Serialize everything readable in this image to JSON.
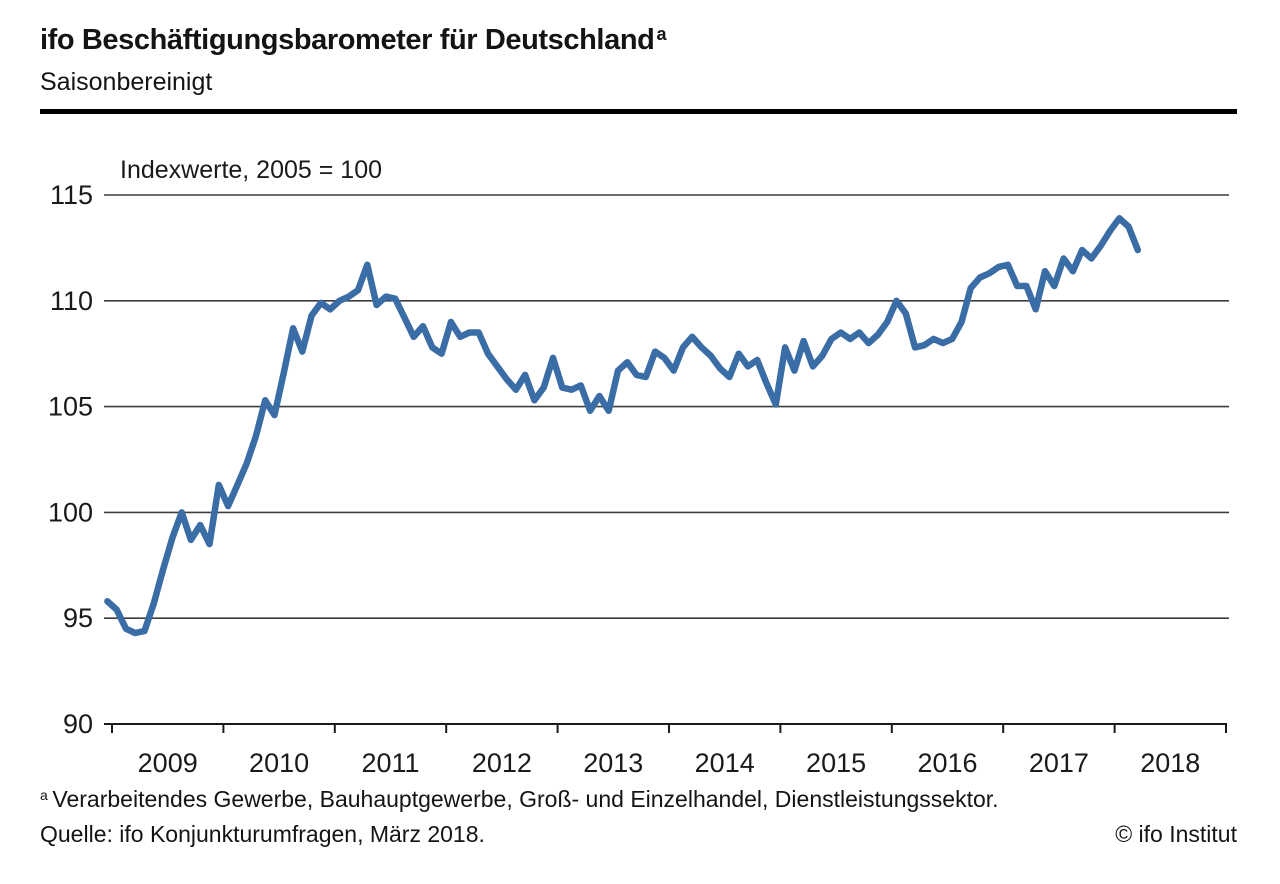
{
  "header": {
    "title": "ifo Beschäftigungsbarometer für Deutschland",
    "title_superscript": "a",
    "subtitle": "Saisonbereinigt"
  },
  "chart_data": {
    "type": "line",
    "title": "ifo Beschäftigungsbarometer für Deutschland (a), saisonbereinigt",
    "axis_label": "Indexwerte, 2005 = 100",
    "frequency": "monthly",
    "x_start": "Dez 2008",
    "x_end": "Mär 2018",
    "x_year_labels": [
      "2009",
      "2010",
      "2011",
      "2012",
      "2013",
      "2014",
      "2015",
      "2016",
      "2017",
      "2018"
    ],
    "y_tick_labels": [
      115,
      110,
      105,
      100,
      95,
      90
    ],
    "ylim": [
      90,
      116.5
    ],
    "grid": "horizontal",
    "legend": "none",
    "line_color": "#3a6ca6",
    "axis_color": "#1a1a1a",
    "grid_color": "#3d3d3d",
    "series": [
      {
        "name": "ifo Beschäftigungsbarometer",
        "values": [
          95.8,
          95.4,
          94.5,
          94.3,
          94.4,
          95.7,
          97.3,
          98.8,
          100.0,
          98.7,
          99.4,
          98.5,
          101.3,
          100.3,
          101.3,
          102.3,
          103.6,
          105.3,
          104.6,
          106.6,
          108.7,
          107.6,
          109.3,
          109.9,
          109.6,
          110.0,
          110.2,
          110.5,
          111.7,
          109.8,
          110.2,
          110.1,
          109.2,
          108.3,
          108.8,
          107.8,
          107.5,
          109.0,
          108.3,
          108.5,
          108.5,
          107.5,
          106.9,
          106.3,
          105.8,
          106.5,
          105.3,
          105.9,
          107.3,
          105.9,
          105.8,
          106.0,
          104.8,
          105.5,
          104.8,
          106.7,
          107.1,
          106.5,
          106.4,
          107.6,
          107.3,
          106.7,
          107.8,
          108.3,
          107.8,
          107.4,
          106.8,
          106.4,
          107.5,
          106.9,
          107.2,
          106.1,
          105.1,
          107.8,
          106.7,
          108.1,
          106.9,
          107.4,
          108.2,
          108.5,
          108.2,
          108.5,
          108.0,
          108.4,
          109.0,
          110.0,
          109.4,
          107.8,
          107.9,
          108.2,
          108.0,
          108.2,
          109.0,
          110.6,
          111.1,
          111.3,
          111.6,
          111.7,
          110.7,
          110.7,
          109.6,
          111.4,
          110.7,
          112.0,
          111.4,
          112.4,
          112.0,
          112.6,
          113.3,
          113.9,
          113.5,
          112.4
        ]
      }
    ]
  },
  "footer": {
    "footnote_marker": "a",
    "footnote_text": "Verarbeitendes Gewerbe, Bauhauptgewerbe, Groß- und Einzelhandel, Dienstleistungssektor.",
    "source": "Quelle: ifo Konjunkturumfragen, März 2018.",
    "copyright": "© ifo Institut"
  }
}
